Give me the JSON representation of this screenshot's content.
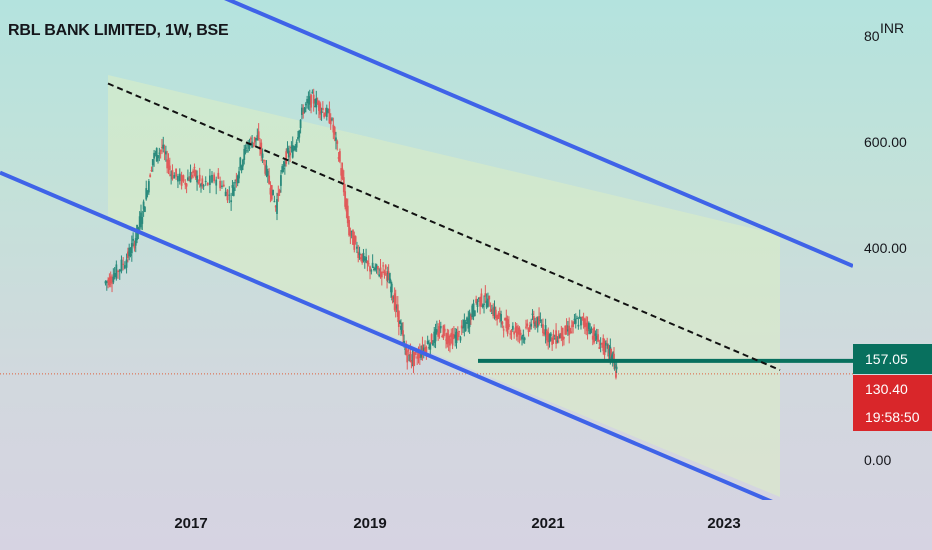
{
  "header": {
    "symbol_title": "RBL BANK LIMITED, 1W, BSE",
    "currency": "INR"
  },
  "price_tags": {
    "level": "157.05",
    "last": "130.40",
    "countdown": "19:58:50"
  },
  "colors": {
    "channel_line": "#3f63e8",
    "midline": "#111111",
    "channel_fill": "#dcefc4",
    "level_line": "#08705e",
    "last_price_line": "#e0603c",
    "candle_up": "#2a8a7c",
    "candle_down": "#e05a5a"
  },
  "chart_data": {
    "type": "line",
    "title": "RBL BANK LIMITED, 1W, BSE",
    "ylabel": "INR",
    "yticks": [
      "0.00",
      "400.00",
      "600.00",
      "800"
    ],
    "xticks": [
      "2017",
      "2019",
      "2021",
      "2023"
    ],
    "ylim": [
      -120,
      820
    ],
    "xlim": [
      2015.4,
      2024.7
    ],
    "grid": false,
    "series": [
      {
        "x": [
          2016.55,
          2016.65,
          2016.78,
          2016.88,
          2016.98,
          2017.08,
          2017.18,
          2017.28,
          2017.42,
          2017.52,
          2017.62,
          2017.78,
          2017.92,
          2018.02,
          2018.12,
          2018.22,
          2018.32,
          2018.42,
          2018.52,
          2018.62,
          2018.72,
          2018.82,
          2018.92,
          2019.02,
          2019.12,
          2019.22,
          2019.32,
          2019.42,
          2019.52,
          2019.62,
          2019.68,
          2019.76,
          2019.84,
          2019.92,
          2020.02,
          2020.12,
          2020.22,
          2020.32,
          2020.42,
          2020.52,
          2020.62,
          2020.72,
          2020.82,
          2020.92,
          2021.02,
          2021.12,
          2021.22,
          2021.32,
          2021.42,
          2021.52,
          2021.62,
          2021.72,
          2021.82,
          2021.92,
          2022.02,
          2022.08,
          2022.13
        ],
        "values": [
          315,
          330,
          360,
          400,
          470,
          570,
          590,
          540,
          520,
          540,
          510,
          530,
          490,
          550,
          600,
          610,
          540,
          470,
          570,
          590,
          670,
          690,
          670,
          650,
          560,
          420,
          380,
          350,
          340,
          340,
          300,
          240,
          170,
          160,
          180,
          200,
          220,
          200,
          210,
          240,
          280,
          280,
          250,
          230,
          220,
          210,
          240,
          230,
          200,
          210,
          220,
          240,
          230,
          200,
          180,
          170,
          130.4
        ]
      }
    ],
    "annotations": {
      "channel_upper": {
        "x": [
          2015.4,
          2024.7
        ],
        "y": [
          1090,
          350
        ]
      },
      "channel_lower": {
        "x": [
          2015.4,
          2024.7
        ],
        "y": [
          540,
          -200
        ]
      },
      "midline": {
        "x": [
          2015.4,
          2024.7
        ],
        "y": [
          815,
          75
        ]
      },
      "horizontal_level": 157.05,
      "last_price": 130.4
    }
  }
}
